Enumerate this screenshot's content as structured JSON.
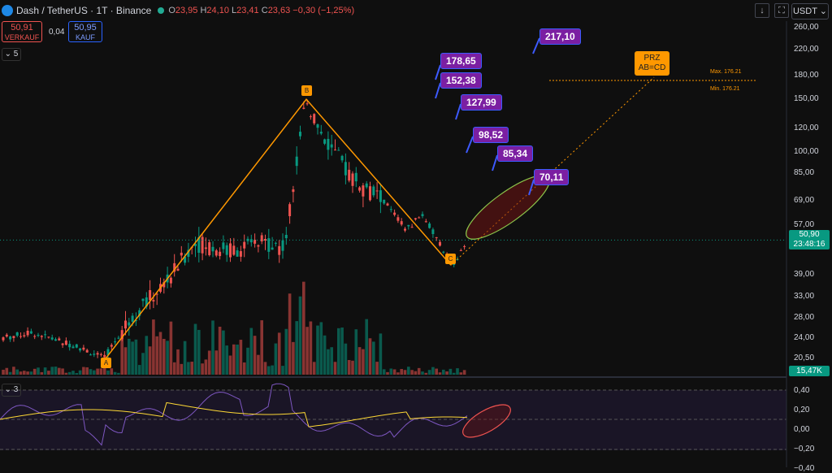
{
  "header": {
    "symbol": "Dash / TetherUS · 1T · Binance",
    "ohlc": [
      {
        "k": "O",
        "v": "23,95"
      },
      {
        "k": "H",
        "v": "24,10"
      },
      {
        "k": "L",
        "v": "23,41"
      },
      {
        "k": "C",
        "v": "23,63"
      }
    ],
    "change": "−0,30 (−1,25%)",
    "sell_price": "50,91",
    "sell_label": "VERKAUF",
    "spread": "0,04",
    "buy_price": "50,95",
    "buy_label": "KAUF",
    "currency": "USDT",
    "collapse_main": "5",
    "collapse_indicator": "3"
  },
  "colors": {
    "up": "#089981",
    "down": "#ef5350",
    "pattern": "#ff9800",
    "target": "#7b1fa2",
    "rsi": "#7e57c2",
    "signal": "#fdd835"
  },
  "axis": {
    "price_ticks": [
      "260,00",
      "220,00",
      "180,00",
      "150,00",
      "120,00",
      "100,00",
      "85,00",
      "69,00",
      "57,00",
      "39,00",
      "33,00",
      "28,00",
      "24,00",
      "20,50"
    ],
    "indicator_ticks": [
      "0,40",
      "0,20",
      "0,00",
      "−0,20",
      "−0,40"
    ],
    "last_price": "50,90",
    "countdown": "23:48:16",
    "volume_label": "15,47K"
  },
  "pattern": {
    "points": [
      {
        "label": "A"
      },
      {
        "label": "B"
      },
      {
        "label": "C"
      }
    ],
    "prz_label_1": "PRZ",
    "prz_label_2": "AB=CD",
    "max_label": "Max. 176.21",
    "min_label": "Min. 176.21"
  },
  "targets": [
    "217,10",
    "178,65",
    "152,38",
    "127,99",
    "98,52",
    "85,34",
    "70,11"
  ],
  "chart_data": {
    "type": "candlestick",
    "title": "Dash / TetherUS · 1T · Binance",
    "y_scale": "log",
    "ylim": [
      18,
      270
    ],
    "pattern_prices": {
      "A": 20.5,
      "B": 150,
      "C": 42
    },
    "targets": [
      217.1,
      178.65,
      152.38,
      127.99,
      98.52,
      85.34,
      70.11
    ],
    "last_price": 50.9,
    "indicator_ylim": [
      -0.22,
      0.4
    ]
  }
}
